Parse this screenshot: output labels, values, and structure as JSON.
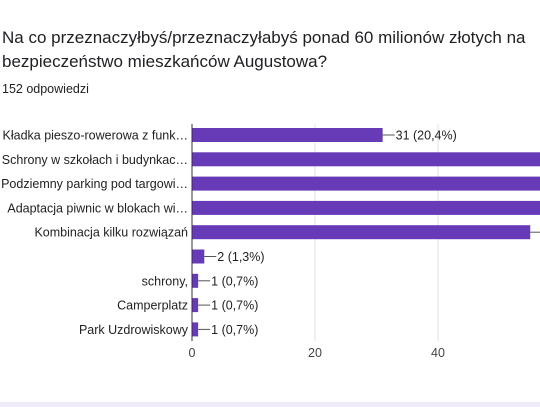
{
  "question": "Na co przeznaczyłbyś/przeznaczyłabyś ponad 60 milionów złotych  na\nbezpieczeństwo mieszkańców Augustowa?",
  "response_count": "152 odpowiedzi",
  "colors": {
    "bar": "#673ab7",
    "grid": "#e0e0e0",
    "axis": "#333333"
  },
  "chart_data": {
    "type": "bar",
    "orientation": "horizontal",
    "categories": [
      "Kładka pieszo-rowerowa z funk…",
      "Schrony w szkołach i budynkac…",
      "Podziemny parking pod targowi…",
      "Adaptacja piwnic w blokach wi…",
      "Kombinacja kilku rozwiązań",
      "",
      "schrony,",
      "Camperplatz",
      "Park Uzdrowiskowy"
    ],
    "values": [
      31,
      58,
      58,
      58,
      55,
      2,
      1,
      1,
      1
    ],
    "value_labels": [
      "31 (20,4%)",
      "",
      "",
      "",
      "",
      "2 (1,3%)",
      "1 (0,7%)",
      "1 (0,7%)",
      "1 (0,7%)"
    ],
    "xticks": [
      0,
      20,
      40
    ],
    "xlim": [
      0,
      56.5
    ],
    "grid": true
  }
}
